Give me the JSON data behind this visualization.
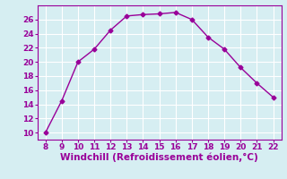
{
  "x": [
    8,
    9,
    10,
    11,
    12,
    13,
    14,
    15,
    16,
    17,
    18,
    19,
    20,
    21,
    22
  ],
  "y": [
    10,
    14.5,
    20,
    21.8,
    24.5,
    26.5,
    26.7,
    26.8,
    27.0,
    26.0,
    23.5,
    21.8,
    19.2,
    17.0,
    15.0
  ],
  "line_color": "#990099",
  "marker": "D",
  "marker_size": 2.5,
  "xlabel": "Windchill (Refroidissement éolien,°C)",
  "xlim": [
    7.5,
    22.5
  ],
  "ylim": [
    9,
    28
  ],
  "xticks": [
    8,
    9,
    10,
    11,
    12,
    13,
    14,
    15,
    16,
    17,
    18,
    19,
    20,
    21,
    22
  ],
  "yticks": [
    10,
    12,
    14,
    16,
    18,
    20,
    22,
    24,
    26
  ],
  "bg_color": "#d6eef2",
  "grid_color": "#ffffff",
  "tick_color": "#990099",
  "label_color": "#990099",
  "tick_fontsize": 6.5,
  "xlabel_fontsize": 7.5
}
